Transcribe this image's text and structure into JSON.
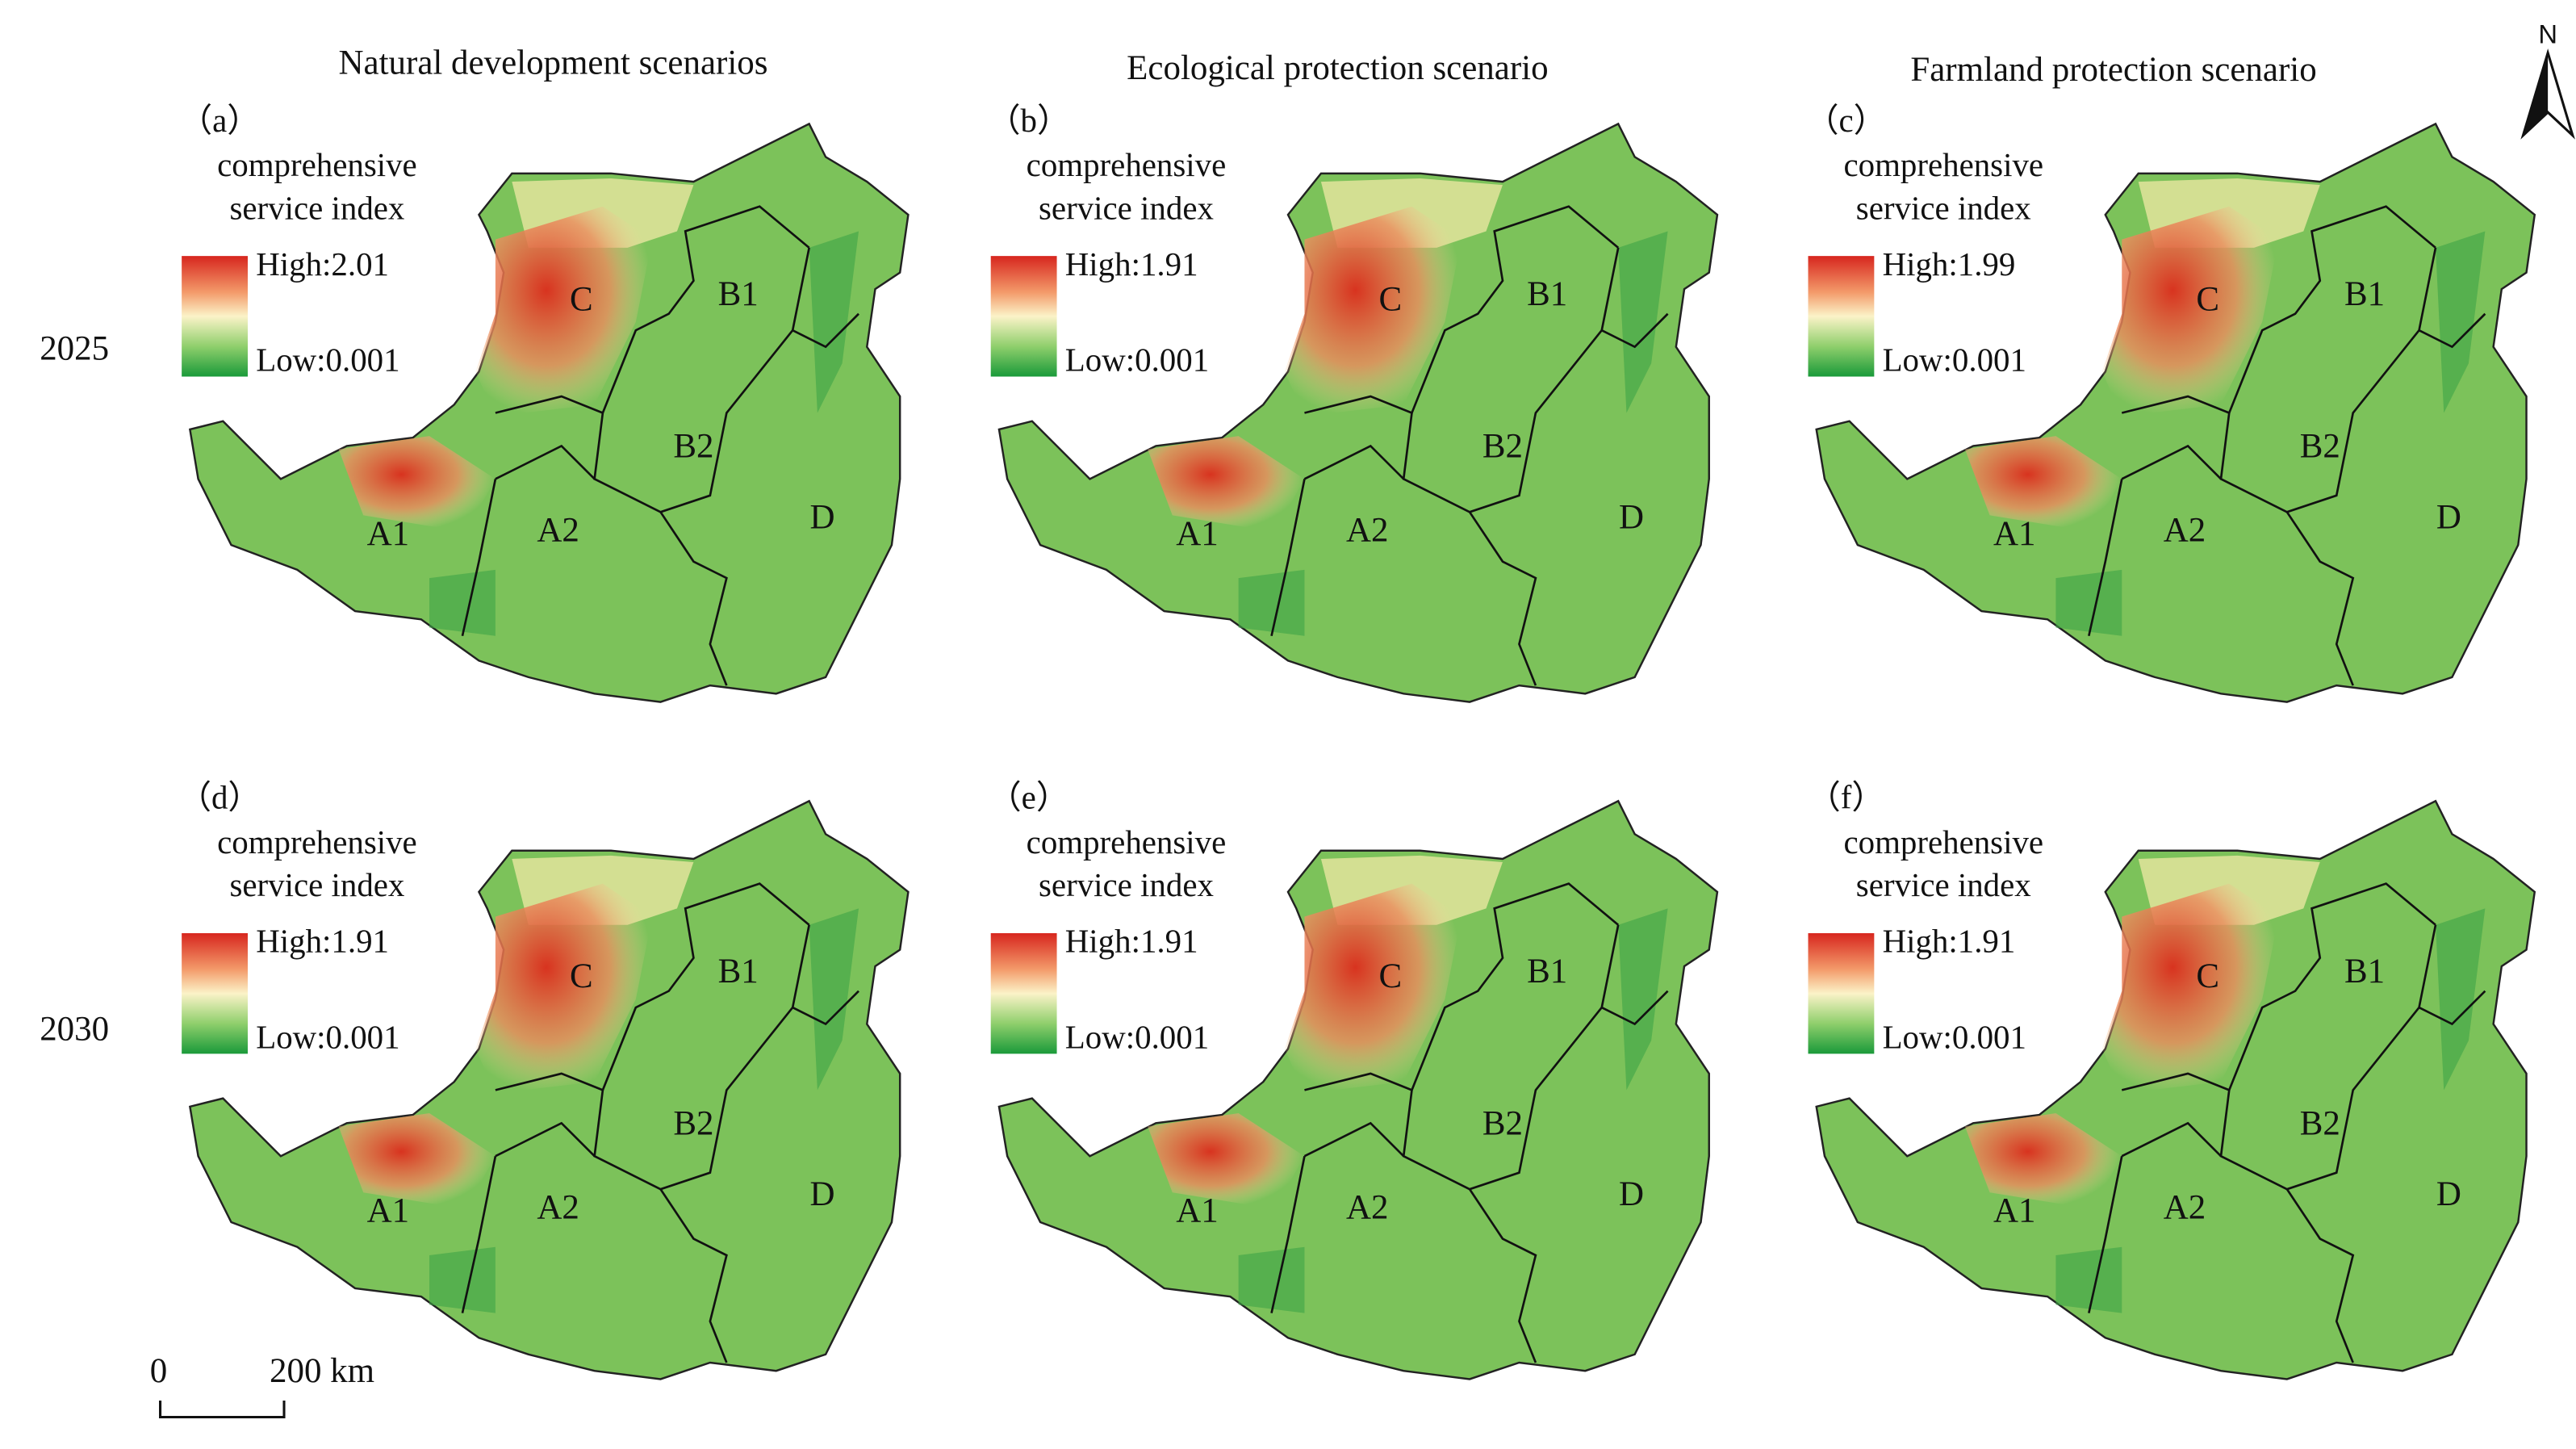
{
  "column_titles": [
    "Natural development scenarios",
    "Ecological protection scenario",
    "Farmland protection scenario"
  ],
  "row_labels": [
    "2025",
    "2030"
  ],
  "panels": [
    {
      "label": "（a）",
      "legend_title": [
        "comprehensive",
        "service index"
      ],
      "high": "High:2.01",
      "low": "Low:0.001",
      "regions": [
        "C",
        "B1",
        "B2",
        "A1",
        "A2",
        "D"
      ]
    },
    {
      "label": "（b）",
      "legend_title": [
        "comprehensive",
        "service index"
      ],
      "high": "High:1.91",
      "low": "Low:0.001",
      "regions": [
        "C",
        "B1",
        "B2",
        "A1",
        "A2",
        "D"
      ]
    },
    {
      "label": "（c）",
      "legend_title": [
        "comprehensive",
        "service index"
      ],
      "high": "High:1.99",
      "low": "Low:0.001",
      "regions": [
        "C",
        "B1",
        "B2",
        "A1",
        "A2",
        "D"
      ]
    },
    {
      "label": "（d）",
      "legend_title": [
        "comprehensive",
        "service index"
      ],
      "high": "High:1.91",
      "low": "Low:0.001",
      "regions": [
        "C",
        "B1",
        "B2",
        "A1",
        "A2",
        "D"
      ]
    },
    {
      "label": "（e）",
      "legend_title": [
        "comprehensive",
        "service index"
      ],
      "high": "High:1.91",
      "low": "Low:0.001",
      "regions": [
        "C",
        "B1",
        "B2",
        "A1",
        "A2",
        "D"
      ]
    },
    {
      "label": "（f）",
      "legend_title": [
        "comprehensive",
        "service index"
      ],
      "high": "High:1.91",
      "low": "Low:0.001",
      "regions": [
        "C",
        "B1",
        "B2",
        "A1",
        "A2",
        "D"
      ]
    }
  ],
  "scale_bar": {
    "start": "0",
    "end": "200 km"
  },
  "north": "N"
}
